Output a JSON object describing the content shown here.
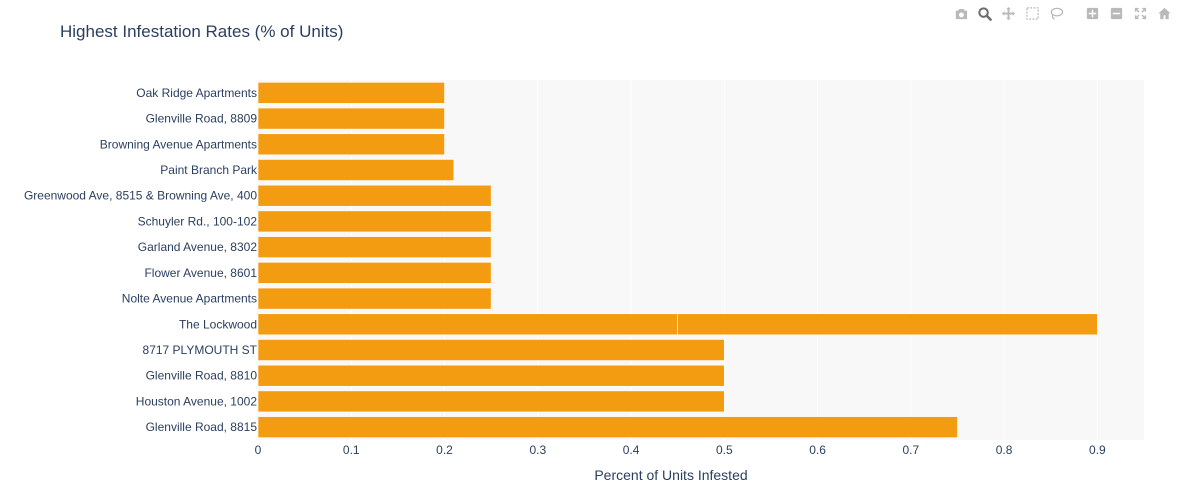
{
  "page": {
    "title": "Highest Infestation Rates (% of Units)"
  },
  "modebar": [
    {
      "name": "camera-icon",
      "active": false
    },
    {
      "name": "zoom-icon",
      "active": true
    },
    {
      "name": "pan-icon",
      "active": false
    },
    {
      "name": "box-select-icon",
      "active": false
    },
    {
      "name": "lasso-select-icon",
      "active": false
    },
    {
      "name": "zoom-in-icon",
      "active": false
    },
    {
      "name": "zoom-out-icon",
      "active": false
    },
    {
      "name": "autoscale-icon",
      "active": false
    },
    {
      "name": "reset-axes-icon",
      "active": false
    }
  ],
  "colors": {
    "bar": "#f39c12",
    "plot_bg": "#f8f8f8",
    "grid": "#ffffff",
    "text": "#2a3f5f",
    "icon": "#b9b9b9",
    "icon_active": "#6c6c6c"
  },
  "chart_data": {
    "type": "bar",
    "orientation": "horizontal",
    "title": "Highest Infestation Rates (% of Units)",
    "xlabel": "Percent of Units Infested",
    "ylabel": "",
    "xlim": [
      0,
      0.95
    ],
    "xticks": [
      "0",
      "0.1",
      "0.2",
      "0.3",
      "0.4",
      "0.5",
      "0.6",
      "0.7",
      "0.8",
      "0.9"
    ],
    "grid": true,
    "categories": [
      "Oak Ridge Apartments",
      "Glenville Road, 8809",
      "Browning Avenue Apartments",
      "Paint Branch Park",
      "Greenwood Ave, 8515 & Browning Ave, 400",
      "Schuyler Rd., 100-102",
      "Garland Avenue, 8302",
      "Flower Avenue, 8601",
      "Nolte Avenue Apartments",
      "The Lockwood",
      "8717 PLYMOUTH ST",
      "Glenville Road, 8810",
      "Houston Avenue, 1002",
      "Glenville Road, 8815"
    ],
    "segments": [
      [
        0.2
      ],
      [
        0.2
      ],
      [
        0.2
      ],
      [
        0.21
      ],
      [
        0.25
      ],
      [
        0.25
      ],
      [
        0.25
      ],
      [
        0.25
      ],
      [
        0.25
      ],
      [
        0.45,
        0.45
      ],
      [
        0.5
      ],
      [
        0.5
      ],
      [
        0.5
      ],
      [
        0.75
      ]
    ]
  }
}
